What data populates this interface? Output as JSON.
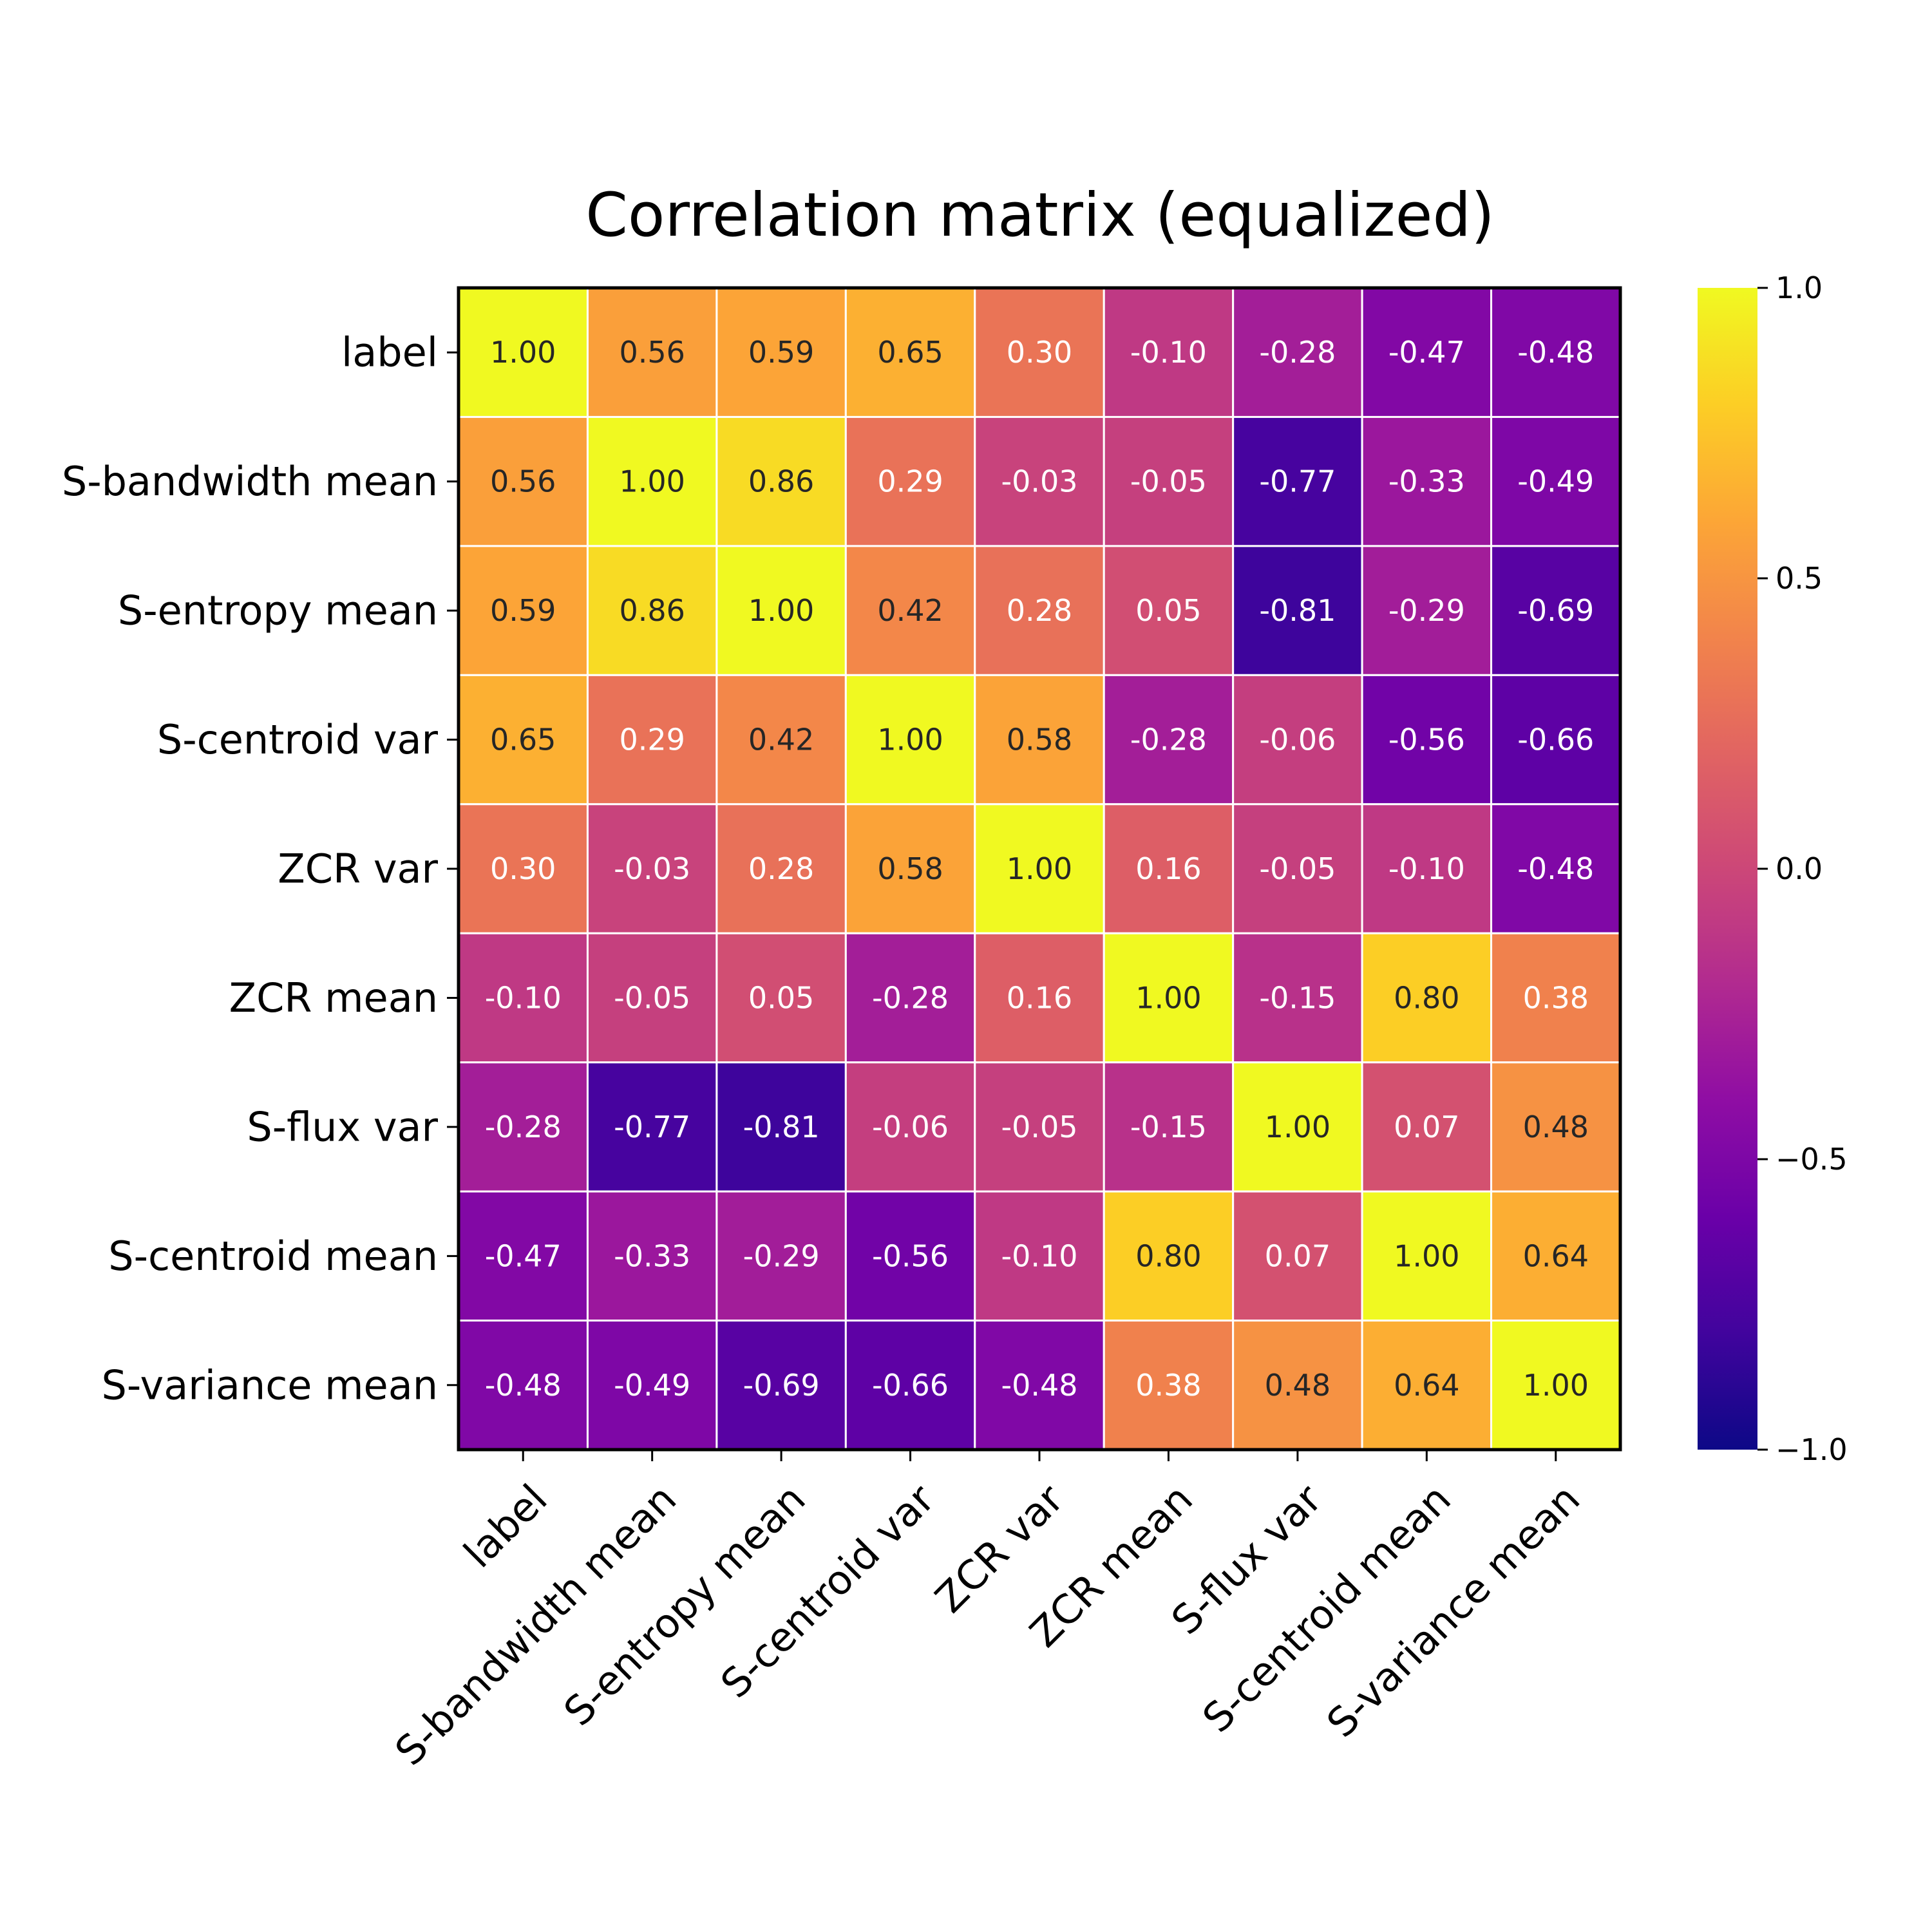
{
  "chart_data": {
    "type": "heatmap",
    "title": "Correlation matrix (equalized)",
    "row_labels": [
      "label",
      "S-bandwidth mean",
      "S-entropy mean",
      "S-centroid var",
      "ZCR var",
      "ZCR mean",
      "S-flux var",
      "S-centroid mean",
      "S-variance mean"
    ],
    "col_labels": [
      "label",
      "S-bandwidth mean",
      "S-entropy mean",
      "S-centroid var",
      "ZCR var",
      "ZCR mean",
      "S-flux var",
      "S-centroid mean",
      "S-variance mean"
    ],
    "values": [
      [
        1.0,
        0.56,
        0.59,
        0.65,
        0.3,
        -0.1,
        -0.28,
        -0.47,
        -0.48
      ],
      [
        0.56,
        1.0,
        0.86,
        0.29,
        -0.03,
        -0.05,
        -0.77,
        -0.33,
        -0.49
      ],
      [
        0.59,
        0.86,
        1.0,
        0.42,
        0.28,
        0.05,
        -0.81,
        -0.29,
        -0.69
      ],
      [
        0.65,
        0.29,
        0.42,
        1.0,
        0.58,
        -0.28,
        -0.06,
        -0.56,
        -0.66
      ],
      [
        0.3,
        -0.03,
        0.28,
        0.58,
        1.0,
        0.16,
        -0.05,
        -0.1,
        -0.48
      ],
      [
        -0.1,
        -0.05,
        0.05,
        -0.28,
        0.16,
        1.0,
        -0.15,
        0.8,
        0.38
      ],
      [
        -0.28,
        -0.77,
        -0.81,
        -0.06,
        -0.05,
        -0.15,
        1.0,
        0.07,
        0.48
      ],
      [
        -0.47,
        -0.33,
        -0.29,
        -0.56,
        -0.1,
        0.8,
        0.07,
        1.0,
        0.64
      ],
      [
        -0.48,
        -0.49,
        -0.69,
        -0.66,
        -0.48,
        0.38,
        0.48,
        0.64,
        1.0
      ]
    ],
    "colormap": "plasma",
    "vmin": -1.0,
    "vmax": 1.0,
    "colorbar_ticks": [
      1.0,
      0.5,
      0.0,
      -0.5,
      -1.0
    ],
    "colorbar_tick_labels": [
      "1.0",
      "0.5",
      "0.0",
      "−0.5",
      "−1.0"
    ],
    "cell_border_color": "#ffffff",
    "annotation_dark_color": "#262626",
    "annotation_light_color": "#ffffff",
    "legend": "colorbar-right",
    "grid": false
  }
}
